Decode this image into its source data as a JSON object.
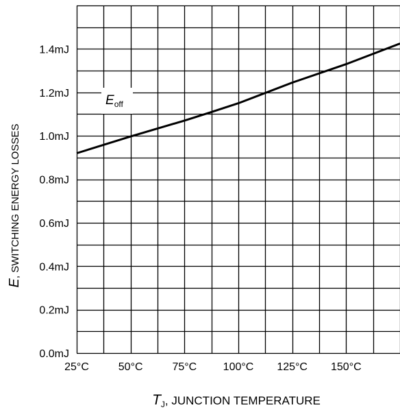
{
  "chart_data": {
    "type": "line",
    "xlabel": {
      "symbol": "T",
      "subscript": "J",
      "rest": ", JUNCTION TEMPERATURE"
    },
    "ylabel": {
      "symbol": "E",
      "rest": ", SWITCHING ENERGY LOSSES"
    },
    "x_ticks": [
      "25°C",
      "50°C",
      "75°C",
      "100°C",
      "125°C",
      "150°C"
    ],
    "y_ticks": [
      "0.0mJ",
      "0.2mJ",
      "0.4mJ",
      "0.6mJ",
      "0.8mJ",
      "1.0mJ",
      "1.2mJ",
      "1.4mJ"
    ],
    "x_tick_values": [
      25,
      50,
      75,
      100,
      125,
      150
    ],
    "y_tick_values": [
      0.0,
      0.2,
      0.4,
      0.6,
      0.8,
      1.0,
      1.2,
      1.4
    ],
    "xlim": [
      25,
      175
    ],
    "ylim": [
      0.0,
      1.6
    ],
    "grid": true,
    "series": [
      {
        "name": "E_off",
        "label": {
          "symbol": "E",
          "subscript": "off"
        },
        "x": [
          25,
          50,
          75,
          87,
          100,
          125,
          150,
          175
        ],
        "y": [
          0.92,
          0.997,
          1.07,
          1.108,
          1.15,
          1.245,
          1.33,
          1.425
        ]
      }
    ]
  }
}
